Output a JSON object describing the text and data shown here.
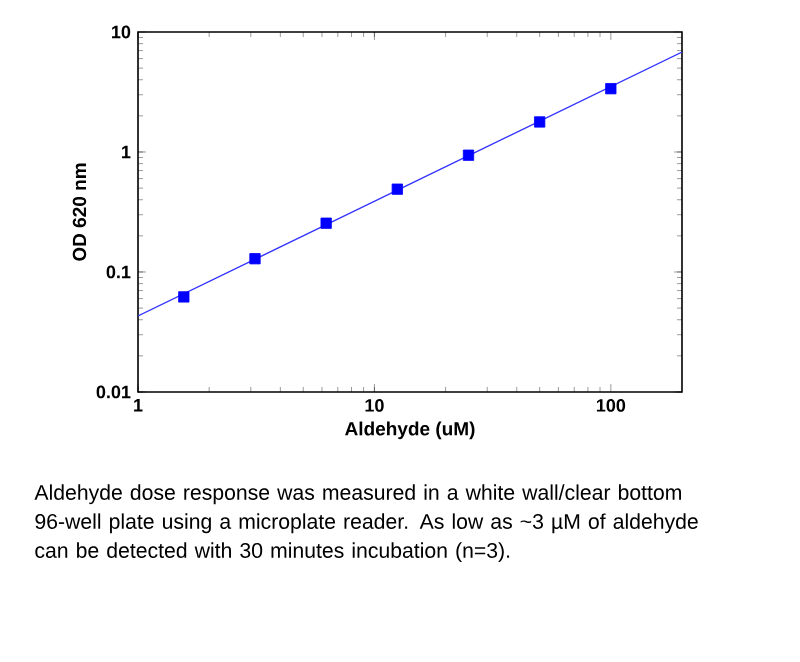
{
  "chart_data": {
    "type": "scatter",
    "xlabel": "Aldehyde (uM)",
    "ylabel": "OD 620 nm",
    "log": "xy",
    "xlim": [
      1,
      200
    ],
    "ylim": [
      0.01,
      10
    ],
    "xticks": [
      1,
      10,
      100
    ],
    "yticks": [
      0.01,
      0.1,
      1,
      10
    ],
    "series": [
      {
        "marker": "square",
        "color": "#0000ff",
        "x": [
          1.5625,
          3.125,
          6.25,
          12.5,
          25,
          50,
          100
        ],
        "values": [
          0.062,
          0.129,
          0.255,
          0.49,
          0.94,
          1.78,
          3.37
        ]
      },
      {
        "type": "line",
        "marker": "none",
        "line_style": "solid",
        "color": "#3333ff",
        "x": [
          1,
          200
        ],
        "values": [
          0.043,
          6.8
        ]
      }
    ],
    "annotations": [
      "Aldehyde dose response was measured in a white wall/clear bottom 96-well plate using a microplate reader. As low as ~3 µM of aldehyde can be detected with 30 minutes incubation (n=3)."
    ]
  }
}
